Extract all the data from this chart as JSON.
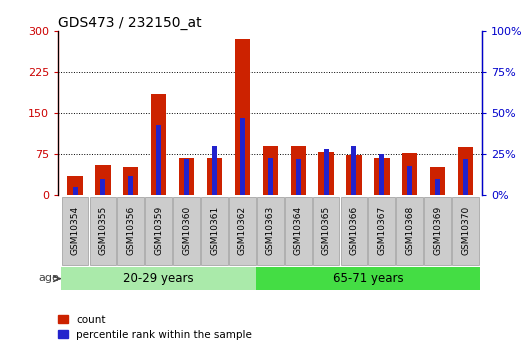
{
  "title": "GDS473 / 232150_at",
  "samples": [
    "GSM10354",
    "GSM10355",
    "GSM10356",
    "GSM10359",
    "GSM10360",
    "GSM10361",
    "GSM10362",
    "GSM10363",
    "GSM10364",
    "GSM10365",
    "GSM10366",
    "GSM10367",
    "GSM10368",
    "GSM10369",
    "GSM10370"
  ],
  "count_values": [
    35,
    55,
    52,
    185,
    68,
    68,
    285,
    90,
    90,
    80,
    73,
    68,
    78,
    52,
    88
  ],
  "percentile_values": [
    5,
    10,
    12,
    43,
    22,
    30,
    47,
    23,
    22,
    28,
    30,
    25,
    18,
    10,
    22
  ],
  "group1_label": "20-29 years",
  "group1_count": 7,
  "group2_label": "65-71 years",
  "group2_count": 8,
  "age_label": "age",
  "left_axis_color": "#cc0000",
  "right_axis_color": "#0000cc",
  "bar_color_red": "#cc2200",
  "bar_color_blue": "#2222cc",
  "ylim_left": [
    0,
    300
  ],
  "ylim_right": [
    0,
    100
  ],
  "yticks_left": [
    0,
    75,
    150,
    225,
    300
  ],
  "yticks_right": [
    0,
    25,
    50,
    75,
    100
  ],
  "ytick_labels_left": [
    "0",
    "75",
    "150",
    "225",
    "300"
  ],
  "ytick_labels_right": [
    "0%",
    "25%",
    "50%",
    "75%",
    "100%"
  ],
  "bg_plot": "#ffffff",
  "bg_xtick": "#cccccc",
  "group1_color": "#aaeaaa",
  "group2_color": "#44dd44",
  "legend_count_label": "count",
  "legend_pct_label": "percentile rank within the sample",
  "red_bar_width": 0.55,
  "blue_bar_width": 0.18
}
